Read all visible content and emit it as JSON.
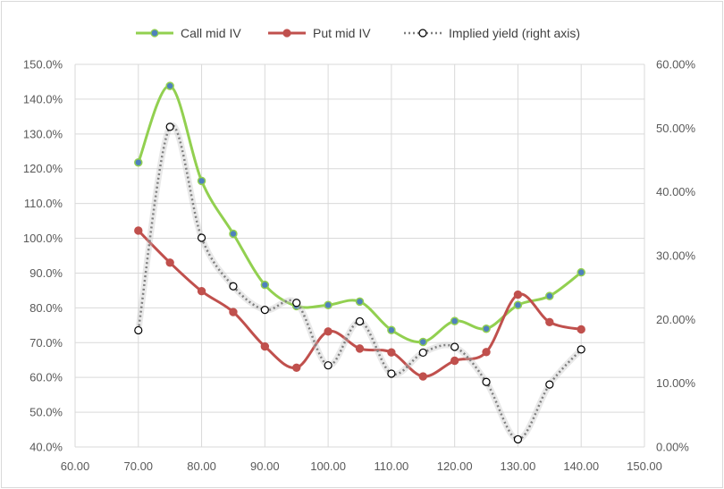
{
  "chart_data": {
    "type": "line",
    "title": "",
    "xlabel": "",
    "ylabel": "",
    "xlim": [
      60,
      150
    ],
    "ylim": [
      40,
      150
    ],
    "y2lim": [
      0,
      60
    ],
    "grid": true,
    "legend_position": "top",
    "x_ticks": [
      "60.00",
      "70.00",
      "80.00",
      "90.00",
      "100.00",
      "110.00",
      "120.00",
      "130.00",
      "140.00",
      "150.00"
    ],
    "y_ticks": [
      "40.0%",
      "50.0%",
      "60.0%",
      "70.0%",
      "80.0%",
      "90.0%",
      "100.0%",
      "110.0%",
      "120.0%",
      "130.0%",
      "140.0%",
      "150.0%"
    ],
    "y2_ticks": [
      "0.00%",
      "10.00%",
      "20.00%",
      "30.00%",
      "40.00%",
      "50.00%",
      "60.00%"
    ],
    "x": [
      70,
      75,
      80,
      85,
      90,
      95,
      100,
      105,
      110,
      115,
      120,
      125,
      130,
      135,
      140
    ],
    "series": [
      {
        "name": "Call mid IV",
        "axis": "left",
        "color": "#92d050",
        "marker_color": "#4f81bd",
        "values": [
          121.8,
          143.8,
          116.5,
          101.3,
          86.6,
          80.5,
          80.8,
          81.8,
          73.6,
          70.2,
          76.2,
          74.0,
          80.8,
          83.4,
          90.2
        ]
      },
      {
        "name": "Put mid IV",
        "axis": "left",
        "color": "#c0504d",
        "marker_color": "#c0504d",
        "values": [
          102.2,
          93.0,
          84.8,
          78.8,
          68.9,
          62.8,
          73.2,
          68.3,
          67.2,
          60.3,
          64.8,
          67.3,
          83.8,
          75.9,
          73.8
        ]
      },
      {
        "name": "Implied yield (right axis)",
        "axis": "right",
        "color": "#7f7f7f",
        "marker_color": "#000000",
        "values": [
          18.3,
          50.2,
          32.8,
          25.2,
          21.5,
          22.6,
          12.8,
          19.7,
          11.5,
          14.8,
          15.7,
          10.2,
          1.2,
          9.8,
          15.3
        ]
      }
    ]
  }
}
